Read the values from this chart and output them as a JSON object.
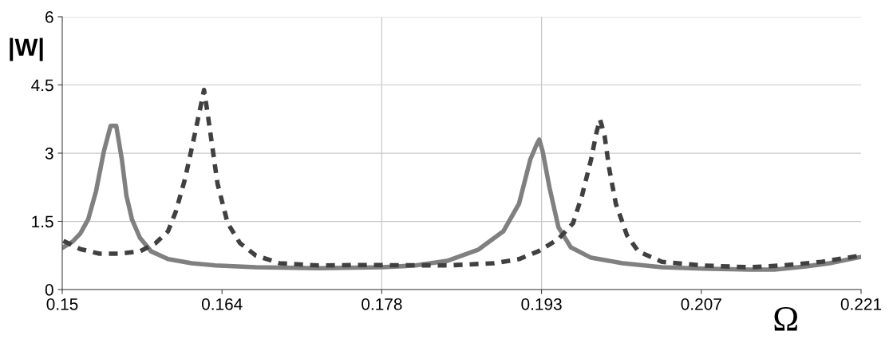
{
  "chart_data": {
    "type": "line",
    "xlabel": "Ω",
    "ylabel": "|W|",
    "xlim": [
      0.15,
      0.221
    ],
    "ylim": [
      0,
      6
    ],
    "xticks": [
      0.15,
      {
        "value": 0.1642,
        "label": "0.164"
      },
      {
        "value": 0.1784,
        "label": "0.178"
      },
      {
        "value": 0.1926,
        "label": "0.193"
      },
      {
        "value": 0.2068,
        "label": "0.207"
      },
      0.221
    ],
    "yticks": [
      0,
      1.5,
      3,
      4.5,
      6
    ],
    "grid": "y",
    "ref_lines": [
      {
        "axis": "x",
        "value": 0.1784,
        "label": null
      },
      {
        "axis": "x",
        "value": 0.1926,
        "label": null
      }
    ],
    "series": [
      {
        "color": "#808080",
        "line_style": "solid",
        "x": [
          0.1501,
          0.1509,
          0.1516,
          0.1523,
          0.153,
          0.1537,
          0.1543,
          0.1548,
          0.1553,
          0.1557,
          0.1562,
          0.1569,
          0.1579,
          0.1594,
          0.1615,
          0.1636,
          0.1672,
          0.1728,
          0.1784,
          0.1814,
          0.1842,
          0.187,
          0.1892,
          0.1906,
          0.1916,
          0.1922,
          0.1924,
          0.1927,
          0.1933,
          0.1941,
          0.1952,
          0.197,
          0.1998,
          0.2033,
          0.2069,
          0.2111,
          0.2133,
          0.2161,
          0.2182,
          0.221
        ],
        "values": [
          0.93,
          1.05,
          1.23,
          1.54,
          2.16,
          3.04,
          3.6,
          3.6,
          2.86,
          2.07,
          1.54,
          1.14,
          0.84,
          0.67,
          0.58,
          0.53,
          0.49,
          0.47,
          0.49,
          0.53,
          0.63,
          0.88,
          1.28,
          1.89,
          2.86,
          3.21,
          3.3,
          3.04,
          2.25,
          1.37,
          0.93,
          0.7,
          0.58,
          0.49,
          0.46,
          0.44,
          0.44,
          0.51,
          0.58,
          0.72
        ]
      },
      {
        "color": "#404040",
        "line_style": "dashed",
        "x": [
          0.1501,
          0.1516,
          0.1533,
          0.1551,
          0.1569,
          0.1583,
          0.1594,
          0.1601,
          0.1609,
          0.1616,
          0.1622,
          0.1626,
          0.1629,
          0.1633,
          0.1638,
          0.1647,
          0.1658,
          0.1672,
          0.1693,
          0.1728,
          0.1764,
          0.1842,
          0.1884,
          0.1906,
          0.1923,
          0.1941,
          0.1954,
          0.1962,
          0.197,
          0.1975,
          0.1978,
          0.1982,
          0.1986,
          0.1992,
          0.2002,
          0.2012,
          0.2033,
          0.2069,
          0.2111,
          0.214,
          0.2175,
          0.221
        ],
        "values": [
          1.07,
          0.89,
          0.79,
          0.79,
          0.84,
          1.02,
          1.28,
          1.72,
          2.42,
          3.21,
          3.91,
          4.39,
          3.91,
          3.21,
          2.33,
          1.46,
          1.02,
          0.75,
          0.58,
          0.53,
          0.54,
          0.53,
          0.58,
          0.67,
          0.84,
          1.11,
          1.46,
          2.07,
          2.86,
          3.47,
          3.74,
          3.39,
          2.68,
          1.89,
          1.19,
          0.84,
          0.61,
          0.53,
          0.49,
          0.53,
          0.61,
          0.75
        ]
      }
    ]
  }
}
